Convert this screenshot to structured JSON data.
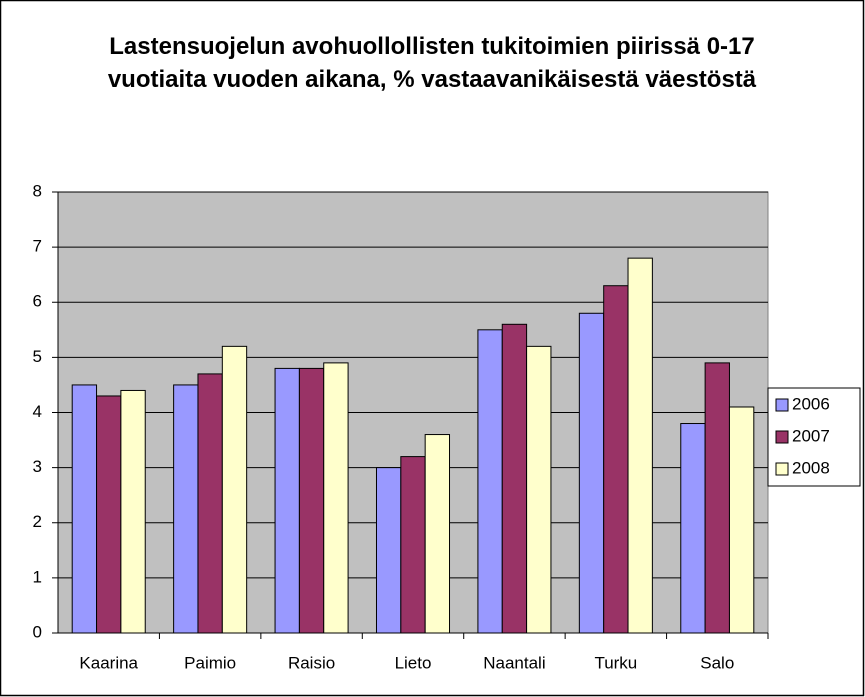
{
  "chart_data": {
    "type": "bar",
    "title": "Lastensuojelun avohuollollisten tukitoimien piirissä 0-17 vuotiaita vuoden aikana, % vastaavanikäisestä väestöstä",
    "categories": [
      "Kaarina",
      "Paimio",
      "Raisio",
      "Lieto",
      "Naantali",
      "Turku",
      "Salo"
    ],
    "series": [
      {
        "name": "2006",
        "color": "#9999ff",
        "values": [
          4.5,
          4.5,
          4.8,
          3.0,
          5.5,
          5.8,
          3.8
        ]
      },
      {
        "name": "2007",
        "color": "#993366",
        "values": [
          4.3,
          4.7,
          4.8,
          3.2,
          5.6,
          6.3,
          4.9
        ]
      },
      {
        "name": "2008",
        "color": "#ffffcc",
        "values": [
          4.4,
          5.2,
          4.9,
          3.6,
          5.2,
          6.8,
          4.1
        ]
      }
    ],
    "ylim": [
      0,
      8
    ],
    "yticks": [
      0,
      1,
      2,
      3,
      4,
      5,
      6,
      7,
      8
    ],
    "grid": true,
    "legend": "right"
  }
}
